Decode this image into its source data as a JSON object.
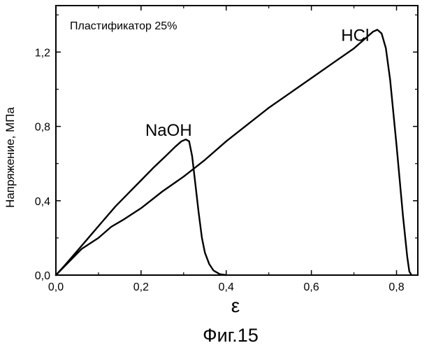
{
  "chart_data": {
    "type": "line",
    "title": "",
    "annotation": "Пластификатор 25%",
    "xlabel": "ε",
    "ylabel": "Напряжение, МПа",
    "caption": "Фиг.15",
    "xlim": [
      0.0,
      0.85
    ],
    "ylim": [
      0.0,
      1.45
    ],
    "xticks": [
      0.0,
      0.2,
      0.4,
      0.6,
      0.8
    ],
    "xtick_labels": [
      "0,0",
      "0,2",
      "0,4",
      "0,6",
      "0,8"
    ],
    "yticks": [
      0.0,
      0.4,
      0.8,
      1.2
    ],
    "ytick_labels": [
      "0,0",
      "0,4",
      "0,8",
      "1,2"
    ],
    "grid": false,
    "series": [
      {
        "name": "NaOH",
        "x": [
          0.0,
          0.02,
          0.05,
          0.08,
          0.11,
          0.14,
          0.17,
          0.2,
          0.23,
          0.26,
          0.28,
          0.295,
          0.305,
          0.313,
          0.32,
          0.327,
          0.335,
          0.343,
          0.35,
          0.36,
          0.37,
          0.385,
          0.4
        ],
        "y": [
          0.0,
          0.05,
          0.13,
          0.21,
          0.29,
          0.37,
          0.44,
          0.51,
          0.58,
          0.645,
          0.69,
          0.72,
          0.73,
          0.72,
          0.64,
          0.5,
          0.34,
          0.2,
          0.12,
          0.06,
          0.025,
          0.005,
          0.0
        ]
      },
      {
        "name": "HCl",
        "x": [
          0.0,
          0.03,
          0.06,
          0.1,
          0.13,
          0.16,
          0.2,
          0.25,
          0.3,
          0.35,
          0.4,
          0.45,
          0.5,
          0.55,
          0.6,
          0.65,
          0.7,
          0.73,
          0.745,
          0.755,
          0.765,
          0.775,
          0.785,
          0.8,
          0.815,
          0.825,
          0.83,
          0.835
        ],
        "y": [
          0.0,
          0.07,
          0.14,
          0.2,
          0.26,
          0.3,
          0.36,
          0.45,
          0.53,
          0.62,
          0.72,
          0.81,
          0.9,
          0.98,
          1.06,
          1.14,
          1.22,
          1.28,
          1.31,
          1.32,
          1.3,
          1.22,
          1.05,
          0.7,
          0.32,
          0.1,
          0.02,
          0.0
        ]
      }
    ],
    "series_labels": [
      {
        "text": "NaOH",
        "x": 0.21,
        "y": 0.75
      },
      {
        "text": "HCl",
        "x": 0.67,
        "y": 1.26
      }
    ],
    "colors": {
      "line": "#000000",
      "axis": "#000000"
    }
  }
}
